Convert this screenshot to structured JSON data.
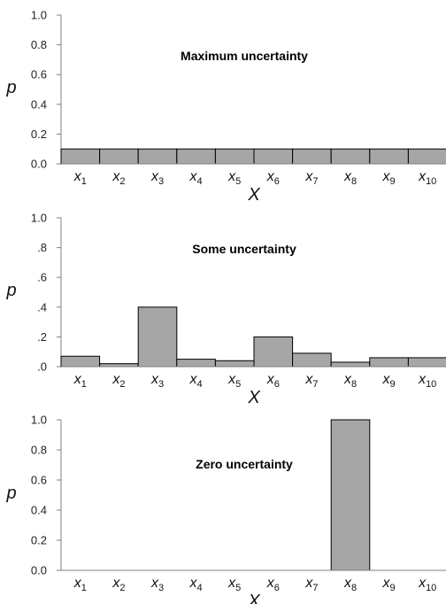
{
  "chart_data": [
    {
      "type": "bar",
      "title": "Maximum uncertainty",
      "ylabel": "p",
      "xlabel": "X",
      "categories": [
        {
          "base": "x",
          "sub": "1"
        },
        {
          "base": "x",
          "sub": "2"
        },
        {
          "base": "x",
          "sub": "3"
        },
        {
          "base": "x",
          "sub": "4"
        },
        {
          "base": "x",
          "sub": "5"
        },
        {
          "base": "x",
          "sub": "6"
        },
        {
          "base": "x",
          "sub": "7"
        },
        {
          "base": "x",
          "sub": "8"
        },
        {
          "base": "x",
          "sub": "9"
        },
        {
          "base": "x",
          "sub": "10"
        }
      ],
      "values": [
        0.1,
        0.1,
        0.1,
        0.1,
        0.1,
        0.1,
        0.1,
        0.1,
        0.1,
        0.1
      ],
      "ylim": [
        0,
        1.0
      ],
      "yticks": [
        0,
        0.2,
        0.4,
        0.6,
        0.8,
        1.0
      ],
      "ytick_labels": [
        "0.0",
        "0.2",
        "0.4",
        "0.6",
        "0.8",
        "1.0"
      ],
      "bar_color": "#a6a6a6",
      "grid": false
    },
    {
      "type": "bar",
      "title": "Some uncertainty",
      "ylabel": "p",
      "xlabel": "X",
      "categories": [
        {
          "base": "x",
          "sub": "1"
        },
        {
          "base": "x",
          "sub": "2"
        },
        {
          "base": "x",
          "sub": "3"
        },
        {
          "base": "x",
          "sub": "4"
        },
        {
          "base": "x",
          "sub": "5"
        },
        {
          "base": "x",
          "sub": "6"
        },
        {
          "base": "x",
          "sub": "7"
        },
        {
          "base": "x",
          "sub": "8"
        },
        {
          "base": "x",
          "sub": "9"
        },
        {
          "base": "x",
          "sub": "10"
        }
      ],
      "values": [
        0.07,
        0.02,
        0.4,
        0.05,
        0.04,
        0.2,
        0.09,
        0.03,
        0.06,
        0.06
      ],
      "ylim": [
        0,
        1.0
      ],
      "yticks": [
        0,
        0.2,
        0.4,
        0.6,
        0.8,
        1.0
      ],
      "ytick_labels": [
        ".0",
        ".2",
        ".4",
        ".6",
        ".8",
        "1.0"
      ],
      "bar_color": "#a6a6a6",
      "grid": false
    },
    {
      "type": "bar",
      "title": "Zero uncertainty",
      "ylabel": "p",
      "xlabel": "X",
      "categories": [
        {
          "base": "x",
          "sub": "1"
        },
        {
          "base": "x",
          "sub": "2"
        },
        {
          "base": "x",
          "sub": "3"
        },
        {
          "base": "x",
          "sub": "4"
        },
        {
          "base": "x",
          "sub": "5"
        },
        {
          "base": "x",
          "sub": "6"
        },
        {
          "base": "x",
          "sub": "7"
        },
        {
          "base": "x",
          "sub": "8"
        },
        {
          "base": "x",
          "sub": "9"
        },
        {
          "base": "x",
          "sub": "10"
        }
      ],
      "values": [
        0,
        0,
        0,
        0,
        0,
        0,
        0,
        1.0,
        0,
        0
      ],
      "ylim": [
        0,
        1.0
      ],
      "yticks": [
        0,
        0.2,
        0.4,
        0.6,
        0.8,
        1.0
      ],
      "ytick_labels": [
        "0.0",
        "0.2",
        "0.4",
        "0.6",
        "0.8",
        "1.0"
      ],
      "bar_color": "#a6a6a6",
      "grid": false
    }
  ]
}
